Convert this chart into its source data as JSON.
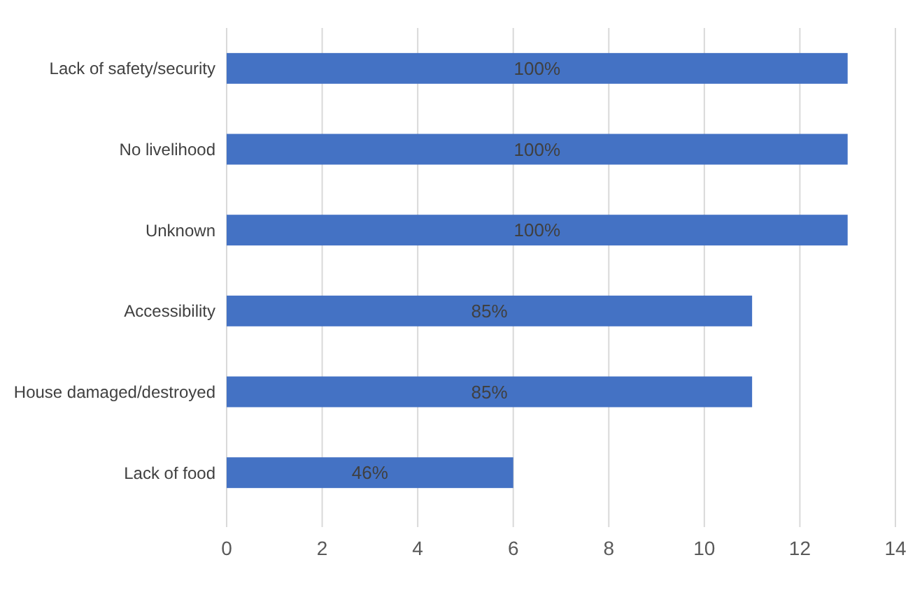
{
  "chart_data": {
    "type": "bar",
    "orientation": "horizontal",
    "categories": [
      "Lack of safety/security",
      "No livelihood",
      "Unknown",
      "Accessibility",
      "House damaged/destroyed",
      "Lack of food"
    ],
    "values": [
      13,
      13,
      13,
      11,
      11,
      6
    ],
    "annotations": [
      "100%",
      "100%",
      "100%",
      "85%",
      "85%",
      "46%"
    ],
    "color": "#4472c4",
    "xlim": [
      0,
      14
    ],
    "xticks": [
      0,
      2,
      4,
      6,
      8,
      10,
      12,
      14
    ],
    "grid": "x"
  }
}
